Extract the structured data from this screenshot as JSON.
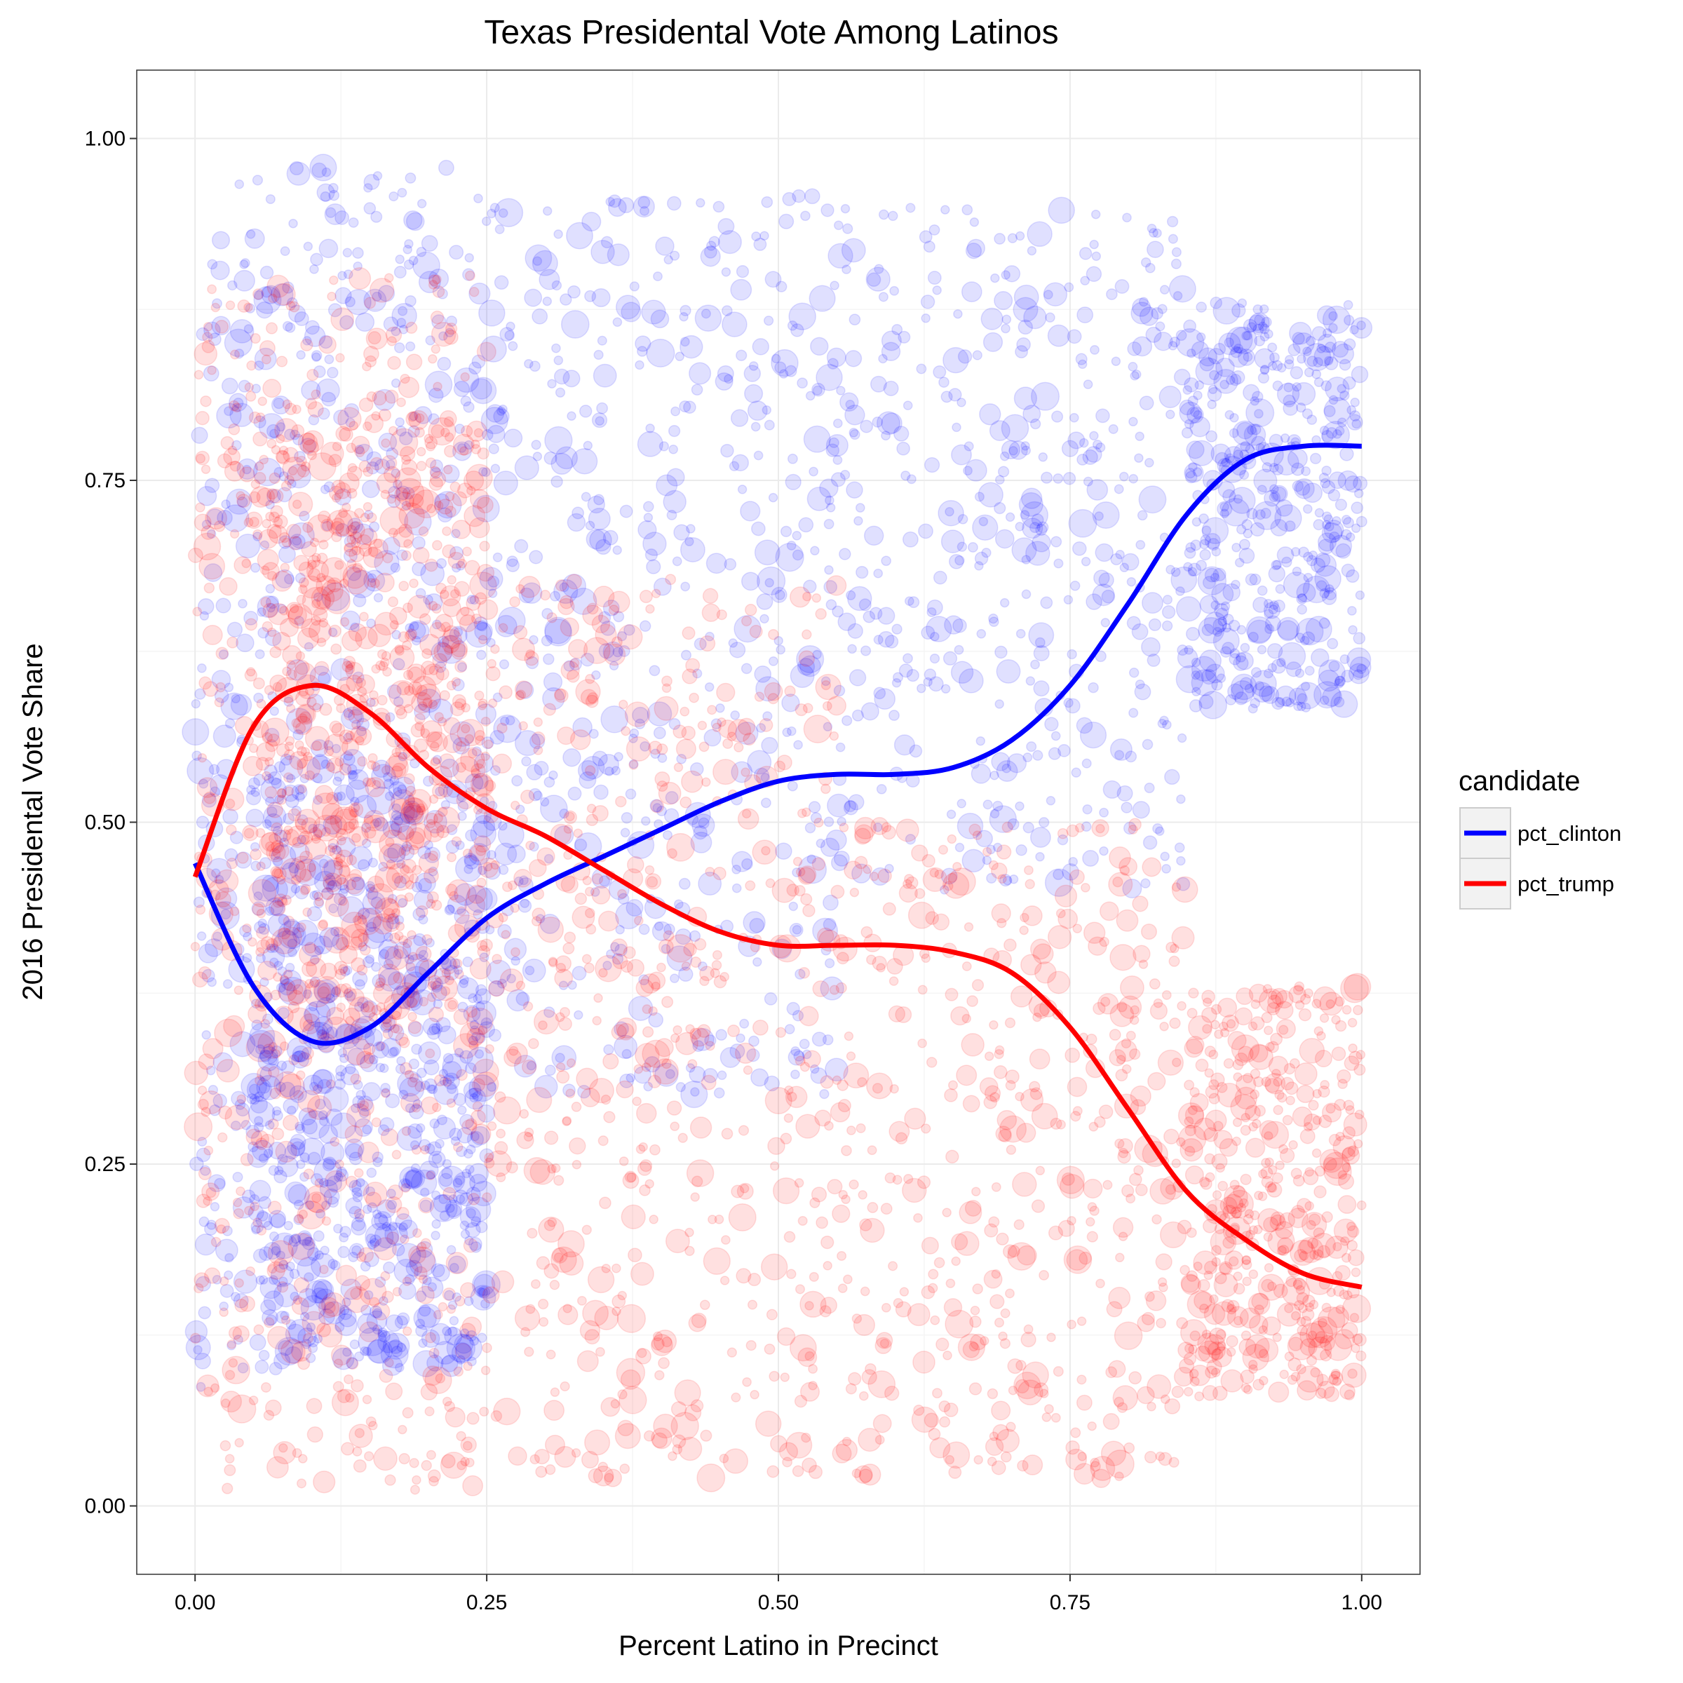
{
  "chart_data": {
    "type": "scatter",
    "title": "Texas Presidental Vote Among Latinos",
    "xlabel": "Percent Latino in Precinct",
    "ylabel": "2016 Presidental Vote Share",
    "xlim": [
      -0.05,
      1.05
    ],
    "ylim": [
      -0.05,
      1.05
    ],
    "x_ticks": [
      {
        "value": 0.0,
        "label": "0.00"
      },
      {
        "value": 0.25,
        "label": "0.25"
      },
      {
        "value": 0.5,
        "label": "0.50"
      },
      {
        "value": 0.75,
        "label": "0.75"
      },
      {
        "value": 1.0,
        "label": "1.00"
      }
    ],
    "y_ticks": [
      {
        "value": 0.0,
        "label": "0.00"
      },
      {
        "value": 0.25,
        "label": "0.25"
      },
      {
        "value": 0.5,
        "label": "0.50"
      },
      {
        "value": 0.75,
        "label": "0.75"
      },
      {
        "value": 1.0,
        "label": "1.00"
      }
    ],
    "grid": true,
    "legend": {
      "title": "candidate",
      "position": "right"
    },
    "series": [
      {
        "name": "pct_clinton",
        "color": "#0000ff",
        "trend": {
          "x": [
            0.0,
            0.05,
            0.1,
            0.15,
            0.2,
            0.25,
            0.3,
            0.35,
            0.4,
            0.45,
            0.5,
            0.55,
            0.6,
            0.65,
            0.7,
            0.75,
            0.8,
            0.85,
            0.9,
            0.95,
            1.0
          ],
          "y": [
            0.47,
            0.38,
            0.34,
            0.35,
            0.39,
            0.43,
            0.455,
            0.475,
            0.495,
            0.515,
            0.53,
            0.535,
            0.535,
            0.54,
            0.56,
            0.6,
            0.66,
            0.725,
            0.765,
            0.775,
            0.775
          ]
        },
        "point_bands": [
          {
            "x": [
              0.0,
              0.02
            ],
            "y": [
              0.08,
              0.92
            ],
            "n": 60
          },
          {
            "x": [
              0.02,
              0.25
            ],
            "y": [
              0.1,
              0.98
            ],
            "n": 700
          },
          {
            "x": [
              0.05,
              0.25
            ],
            "y": [
              0.1,
              0.55
            ],
            "n": 500
          },
          {
            "x": [
              0.25,
              0.55
            ],
            "y": [
              0.3,
              0.96
            ],
            "n": 550
          },
          {
            "x": [
              0.55,
              0.85
            ],
            "y": [
              0.45,
              0.95
            ],
            "n": 450
          },
          {
            "x": [
              0.85,
              1.0
            ],
            "y": [
              0.58,
              0.88
            ],
            "n": 450
          }
        ]
      },
      {
        "name": "pct_trump",
        "color": "#ff0000",
        "trend": {
          "x": [
            0.0,
            0.05,
            0.1,
            0.15,
            0.2,
            0.25,
            0.3,
            0.35,
            0.4,
            0.45,
            0.5,
            0.55,
            0.6,
            0.65,
            0.7,
            0.75,
            0.8,
            0.85,
            0.9,
            0.95,
            1.0
          ],
          "y": [
            0.46,
            0.57,
            0.6,
            0.58,
            0.54,
            0.51,
            0.49,
            0.465,
            0.44,
            0.42,
            0.41,
            0.41,
            0.41,
            0.405,
            0.39,
            0.35,
            0.29,
            0.23,
            0.195,
            0.17,
            0.16
          ]
        },
        "point_bands": [
          {
            "x": [
              0.0,
              0.02
            ],
            "y": [
              0.08,
              0.9
            ],
            "n": 60
          },
          {
            "x": [
              0.02,
              0.25
            ],
            "y": [
              0.01,
              0.9
            ],
            "n": 700
          },
          {
            "x": [
              0.05,
              0.25
            ],
            "y": [
              0.35,
              0.8
            ],
            "n": 500
          },
          {
            "x": [
              0.25,
              0.55
            ],
            "y": [
              0.02,
              0.68
            ],
            "n": 550
          },
          {
            "x": [
              0.55,
              0.85
            ],
            "y": [
              0.02,
              0.5
            ],
            "n": 450
          },
          {
            "x": [
              0.85,
              1.0
            ],
            "y": [
              0.08,
              0.38
            ],
            "n": 450
          }
        ]
      }
    ]
  }
}
